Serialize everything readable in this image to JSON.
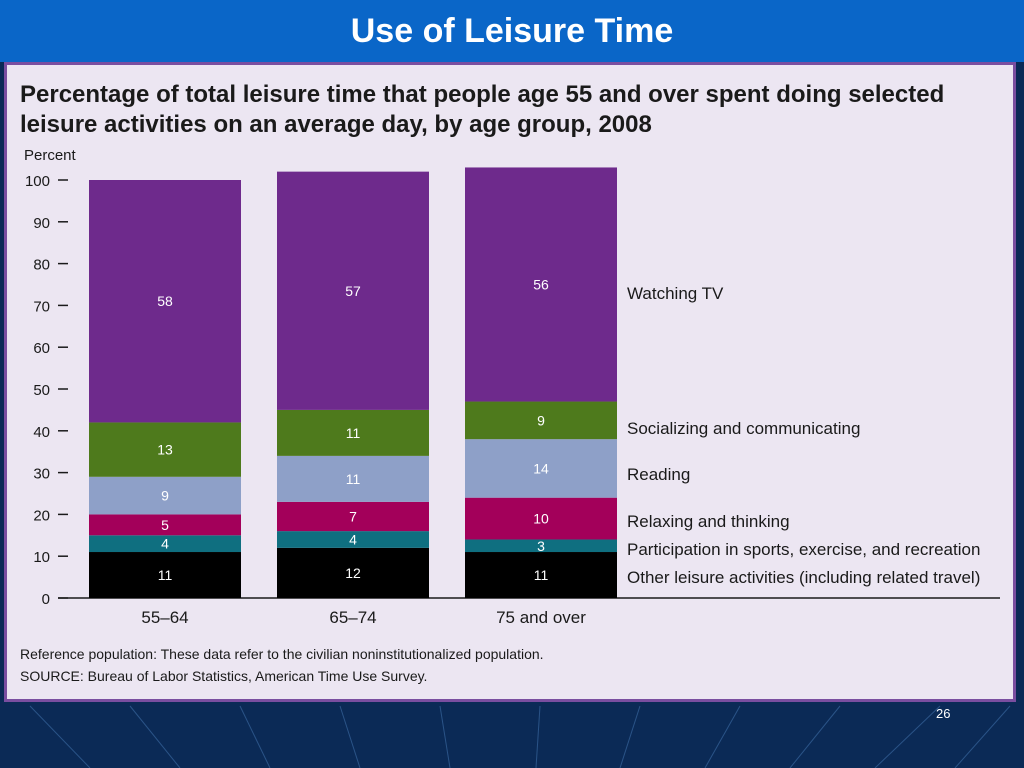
{
  "slide": {
    "title": "Use of Leisure Time",
    "page_number": "26"
  },
  "chart_data": {
    "type": "bar",
    "stacked": true,
    "title": "Percentage of total leisure time that people age 55 and over spent doing selected leisure activities on an average day, by age group, 2008",
    "ylabel": "Percent",
    "xlabel": "",
    "ylim": [
      0,
      100
    ],
    "yticks": [
      0,
      10,
      20,
      30,
      40,
      50,
      60,
      70,
      80,
      90,
      100
    ],
    "categories": [
      "55–64",
      "65–74",
      "75 and over"
    ],
    "series": [
      {
        "name": "Other leisure activities (including related travel)",
        "values": [
          11,
          12,
          11
        ],
        "color": "#000000"
      },
      {
        "name": "Participation in sports, exercise, and recreation",
        "values": [
          4,
          4,
          3
        ],
        "color": "#0f6f80"
      },
      {
        "name": "Relaxing and thinking",
        "values": [
          5,
          7,
          10
        ],
        "color": "#a3005a"
      },
      {
        "name": "Reading",
        "values": [
          9,
          11,
          14
        ],
        "color": "#8ea0c8"
      },
      {
        "name": "Socializing and communicating",
        "values": [
          13,
          11,
          9
        ],
        "color": "#4e7a1c"
      },
      {
        "name": "Watching TV",
        "values": [
          58,
          57,
          56
        ],
        "color": "#6e2a8c"
      }
    ],
    "legend_placement": "right"
  },
  "notes": {
    "reference": "Reference population: These data refer to the civilian noninstitutionalized population.",
    "source": "SOURCE:  Bureau of Labor Statistics, American Time Use Survey."
  }
}
